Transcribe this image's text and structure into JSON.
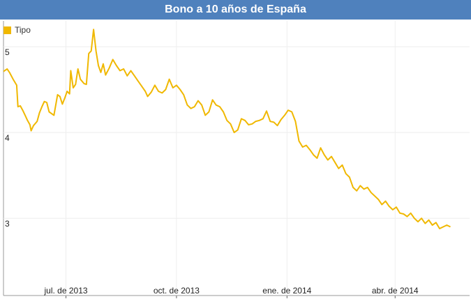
{
  "chart_data": {
    "type": "line",
    "title": "Bono a 10 años de España",
    "xlabel": "",
    "ylabel": "",
    "legend": {
      "position": "top-left"
    },
    "grid": true,
    "ylim": [
      2.1,
      5.3
    ],
    "y_ticks": [
      {
        "value": 3,
        "label": "3"
      },
      {
        "value": 4,
        "label": "4"
      },
      {
        "value": 5,
        "label": "5"
      }
    ],
    "xlim": [
      "2013-05-09",
      "2014-06-01"
    ],
    "x_ticks": [
      {
        "date": "2013-06-30",
        "label": "jul. de 2013"
      },
      {
        "date": "2013-09-30",
        "label": "oct. de 2013"
      },
      {
        "date": "2013-12-31",
        "label": "ene. de 2014"
      },
      {
        "date": "2014-03-31",
        "label": "abr. de 2014"
      }
    ],
    "series": [
      {
        "name": "Tipo",
        "color": "#f0b800",
        "points": [
          [
            "2013-05-09",
            4.71
          ],
          [
            "2013-05-12",
            4.74
          ],
          [
            "2013-05-14",
            4.7
          ],
          [
            "2013-05-17",
            4.62
          ],
          [
            "2013-05-20",
            4.55
          ],
          [
            "2013-05-21",
            4.3
          ],
          [
            "2013-05-23",
            4.31
          ],
          [
            "2013-05-25",
            4.26
          ],
          [
            "2013-05-27",
            4.2
          ],
          [
            "2013-05-29",
            4.14
          ],
          [
            "2013-05-31",
            4.09
          ],
          [
            "2013-06-01",
            4.02
          ],
          [
            "2013-06-03",
            4.08
          ],
          [
            "2013-06-06",
            4.13
          ],
          [
            "2013-06-08",
            4.23
          ],
          [
            "2013-06-10",
            4.3
          ],
          [
            "2013-06-12",
            4.36
          ],
          [
            "2013-06-14",
            4.35
          ],
          [
            "2013-06-16",
            4.24
          ],
          [
            "2013-06-20",
            4.2
          ],
          [
            "2013-06-23",
            4.44
          ],
          [
            "2013-06-25",
            4.42
          ],
          [
            "2013-06-27",
            4.33
          ],
          [
            "2013-06-29",
            4.4
          ],
          [
            "2013-07-01",
            4.48
          ],
          [
            "2013-07-03",
            4.45
          ],
          [
            "2013-07-04",
            4.72
          ],
          [
            "2013-07-06",
            4.52
          ],
          [
            "2013-07-08",
            4.56
          ],
          [
            "2013-07-10",
            4.74
          ],
          [
            "2013-07-12",
            4.62
          ],
          [
            "2013-07-15",
            4.57
          ],
          [
            "2013-07-17",
            4.56
          ],
          [
            "2013-07-19",
            4.92
          ],
          [
            "2013-07-21",
            4.95
          ],
          [
            "2013-07-23",
            5.2
          ],
          [
            "2013-07-25",
            4.95
          ],
          [
            "2013-07-27",
            4.78
          ],
          [
            "2013-07-29",
            4.7
          ],
          [
            "2013-07-31",
            4.8
          ],
          [
            "2013-08-02",
            4.67
          ],
          [
            "2013-08-05",
            4.75
          ],
          [
            "2013-08-08",
            4.85
          ],
          [
            "2013-08-11",
            4.78
          ],
          [
            "2013-08-14",
            4.72
          ],
          [
            "2013-08-17",
            4.74
          ],
          [
            "2013-08-20",
            4.66
          ],
          [
            "2013-08-23",
            4.72
          ],
          [
            "2013-08-26",
            4.66
          ],
          [
            "2013-08-29",
            4.6
          ],
          [
            "2013-09-01",
            4.54
          ],
          [
            "2013-09-04",
            4.48
          ],
          [
            "2013-09-06",
            4.42
          ],
          [
            "2013-09-09",
            4.47
          ],
          [
            "2013-09-12",
            4.55
          ],
          [
            "2013-09-15",
            4.48
          ],
          [
            "2013-09-18",
            4.46
          ],
          [
            "2013-09-21",
            4.5
          ],
          [
            "2013-09-24",
            4.62
          ],
          [
            "2013-09-27",
            4.52
          ],
          [
            "2013-09-30",
            4.55
          ],
          [
            "2013-10-03",
            4.5
          ],
          [
            "2013-10-06",
            4.44
          ],
          [
            "2013-10-09",
            4.32
          ],
          [
            "2013-10-12",
            4.28
          ],
          [
            "2013-10-15",
            4.3
          ],
          [
            "2013-10-18",
            4.37
          ],
          [
            "2013-10-21",
            4.32
          ],
          [
            "2013-10-24",
            4.2
          ],
          [
            "2013-10-27",
            4.24
          ],
          [
            "2013-10-30",
            4.38
          ],
          [
            "2013-11-02",
            4.32
          ],
          [
            "2013-11-05",
            4.3
          ],
          [
            "2013-11-08",
            4.24
          ],
          [
            "2013-11-11",
            4.14
          ],
          [
            "2013-11-14",
            4.1
          ],
          [
            "2013-11-17",
            4.0
          ],
          [
            "2013-11-20",
            4.03
          ],
          [
            "2013-11-23",
            4.16
          ],
          [
            "2013-11-26",
            4.14
          ],
          [
            "2013-11-29",
            4.09
          ],
          [
            "2013-12-02",
            4.1
          ],
          [
            "2013-12-05",
            4.13
          ],
          [
            "2013-12-08",
            4.14
          ],
          [
            "2013-12-11",
            4.16
          ],
          [
            "2013-12-14",
            4.25
          ],
          [
            "2013-12-17",
            4.13
          ],
          [
            "2013-12-20",
            4.12
          ],
          [
            "2013-12-23",
            4.08
          ],
          [
            "2013-12-26",
            4.15
          ],
          [
            "2013-12-29",
            4.2
          ],
          [
            "2014-01-01",
            4.26
          ],
          [
            "2014-01-04",
            4.24
          ],
          [
            "2014-01-07",
            4.13
          ],
          [
            "2014-01-10",
            3.9
          ],
          [
            "2014-01-13",
            3.83
          ],
          [
            "2014-01-16",
            3.85
          ],
          [
            "2014-01-19",
            3.8
          ],
          [
            "2014-01-22",
            3.74
          ],
          [
            "2014-01-25",
            3.7
          ],
          [
            "2014-01-28",
            3.82
          ],
          [
            "2014-01-31",
            3.74
          ],
          [
            "2014-02-03",
            3.68
          ],
          [
            "2014-02-06",
            3.72
          ],
          [
            "2014-02-09",
            3.65
          ],
          [
            "2014-02-12",
            3.58
          ],
          [
            "2014-02-15",
            3.62
          ],
          [
            "2014-02-18",
            3.52
          ],
          [
            "2014-02-21",
            3.48
          ],
          [
            "2014-02-24",
            3.36
          ],
          [
            "2014-02-27",
            3.32
          ],
          [
            "2014-03-02",
            3.38
          ],
          [
            "2014-03-05",
            3.34
          ],
          [
            "2014-03-08",
            3.36
          ],
          [
            "2014-03-11",
            3.3
          ],
          [
            "2014-03-14",
            3.26
          ],
          [
            "2014-03-17",
            3.22
          ],
          [
            "2014-03-20",
            3.16
          ],
          [
            "2014-03-23",
            3.2
          ],
          [
            "2014-03-26",
            3.14
          ],
          [
            "2014-03-29",
            3.1
          ],
          [
            "2014-04-01",
            3.13
          ],
          [
            "2014-04-04",
            3.06
          ],
          [
            "2014-04-07",
            3.05
          ],
          [
            "2014-04-10",
            3.02
          ],
          [
            "2014-04-13",
            3.06
          ],
          [
            "2014-04-16",
            3.0
          ],
          [
            "2014-04-19",
            2.96
          ],
          [
            "2014-04-22",
            3.0
          ],
          [
            "2014-04-25",
            2.94
          ],
          [
            "2014-04-28",
            2.98
          ],
          [
            "2014-05-01",
            2.92
          ],
          [
            "2014-05-04",
            2.95
          ],
          [
            "2014-05-07",
            2.88
          ],
          [
            "2014-05-10",
            2.9
          ],
          [
            "2014-05-13",
            2.92
          ],
          [
            "2014-05-16",
            2.9
          ]
        ]
      }
    ]
  }
}
